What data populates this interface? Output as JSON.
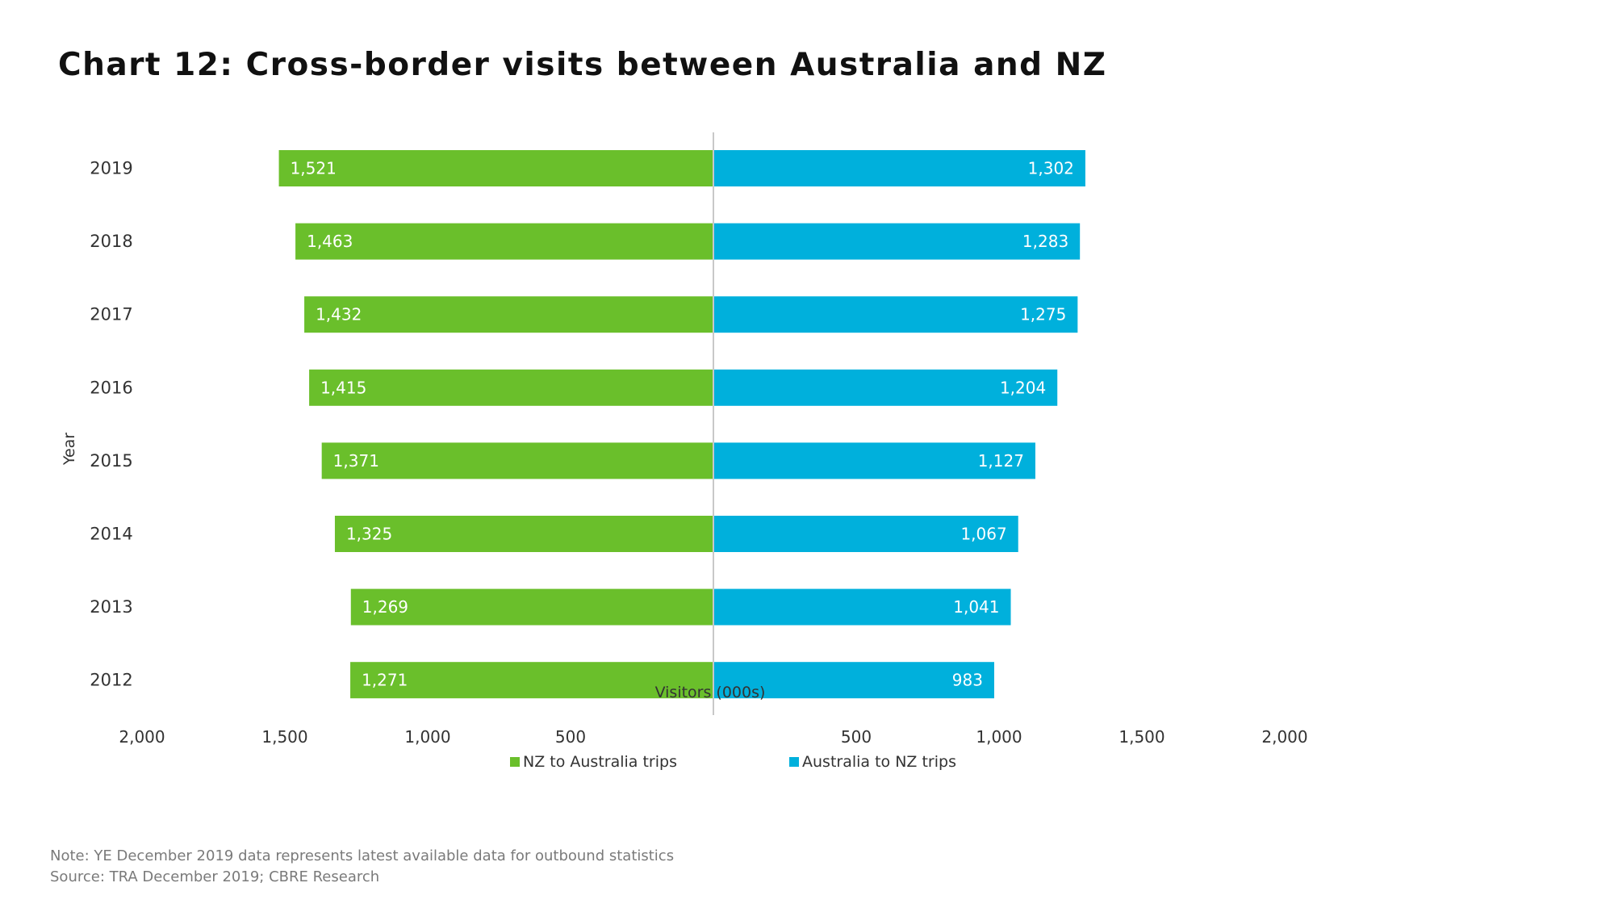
{
  "title": "Chart 12: Cross-border visits between Australia and NZ",
  "note": "Note: YE December 2019 data represents latest available data for outbound statistics",
  "source": "Source: TRA December 2019; CBRE Research",
  "chart_data": {
    "type": "bar",
    "orientation": "horizontal",
    "layout": "butterfly",
    "categories": [
      "2019",
      "2018",
      "2017",
      "2016",
      "2015",
      "2014",
      "2013",
      "2012"
    ],
    "series": [
      {
        "name": "NZ to Australia trips",
        "color": "#6abf2b",
        "side": "left",
        "values": [
          1521,
          1463,
          1432,
          1415,
          1371,
          1325,
          1269,
          1271
        ],
        "labels": [
          "1,521",
          "1,463",
          "1,432",
          "1,415",
          "1,371",
          "1,325",
          "1,269",
          "1,271"
        ]
      },
      {
        "name": "Australia to NZ trips",
        "color": "#00b0dc",
        "side": "right",
        "values": [
          1302,
          1283,
          1275,
          1204,
          1127,
          1067,
          1041,
          983
        ],
        "labels": [
          "1,302",
          "1,283",
          "1,275",
          "1,204",
          "1,127",
          "1,067",
          "1,041",
          "983"
        ]
      }
    ],
    "xlim": [
      0,
      2000
    ],
    "x_ticks_left": [
      "2,000",
      "1,500",
      "1,000",
      "500"
    ],
    "x_ticks_right": [
      "500",
      "1,000",
      "1,500",
      "2,000"
    ],
    "xlabel": "Visitors (000s)",
    "ylabel": "Year",
    "legend_position": "bottom",
    "grid": false
  }
}
